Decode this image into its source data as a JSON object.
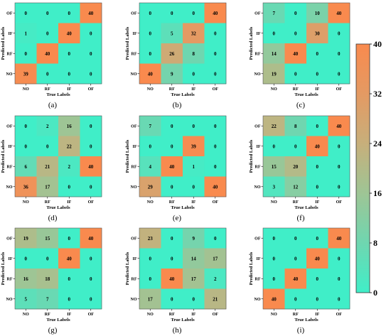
{
  "chart_data": {
    "type": "heatmap",
    "color_scale": {
      "min": 0,
      "max": 40,
      "ticks": [
        "0",
        "8",
        "16",
        "24",
        "32",
        "40"
      ],
      "colors": [
        "#40eec8",
        "#6fd6b0",
        "#9ec595",
        "#c7af7b",
        "#e49a63",
        "#f98a4e"
      ]
    },
    "xlabel": "True Labels",
    "ylabel": "Predicted Labels",
    "x_categories": [
      "NO",
      "RF",
      "IF",
      "OF"
    ],
    "y_categories_top_to_bottom": [
      "OF",
      "IF",
      "RF",
      "NO"
    ],
    "panels": [
      {
        "caption": "(a)",
        "matrix": [
          [
            0,
            0,
            0,
            40
          ],
          [
            1,
            0,
            40,
            0
          ],
          [
            0,
            40,
            0,
            0
          ],
          [
            39,
            0,
            0,
            0
          ]
        ]
      },
      {
        "caption": "(b)",
        "matrix": [
          [
            0,
            0,
            0,
            40
          ],
          [
            0,
            5,
            32,
            0
          ],
          [
            0,
            26,
            8,
            0
          ],
          [
            40,
            9,
            0,
            0
          ]
        ]
      },
      {
        "caption": "(c)",
        "matrix": [
          [
            7,
            0,
            10,
            40
          ],
          [
            0,
            0,
            30,
            0
          ],
          [
            14,
            40,
            0,
            0
          ],
          [
            19,
            0,
            0,
            0
          ]
        ]
      },
      {
        "caption": "(d)",
        "matrix": [
          [
            0,
            2,
            16,
            0
          ],
          [
            0,
            0,
            22,
            0
          ],
          [
            6,
            21,
            2,
            40
          ],
          [
            36,
            17,
            0,
            0
          ]
        ]
      },
      {
        "caption": "(e)",
        "matrix": [
          [
            7,
            0,
            0,
            0
          ],
          [
            0,
            0,
            39,
            0
          ],
          [
            4,
            40,
            1,
            0
          ],
          [
            29,
            0,
            0,
            40
          ]
        ]
      },
      {
        "caption": "(f)",
        "matrix": [
          [
            22,
            8,
            0,
            40
          ],
          [
            0,
            0,
            40,
            0
          ],
          [
            15,
            20,
            0,
            0
          ],
          [
            3,
            12,
            0,
            0
          ]
        ]
      },
      {
        "caption": "(g)",
        "matrix": [
          [
            19,
            15,
            0,
            40
          ],
          [
            0,
            0,
            40,
            0
          ],
          [
            16,
            18,
            0,
            0
          ],
          [
            5,
            7,
            0,
            0
          ]
        ]
      },
      {
        "caption": "(h)",
        "matrix": [
          [
            23,
            0,
            9,
            0
          ],
          [
            0,
            0,
            14,
            17
          ],
          [
            0,
            40,
            17,
            2
          ],
          [
            17,
            0,
            0,
            21
          ]
        ]
      },
      {
        "caption": "(i)",
        "matrix": [
          [
            0,
            0,
            0,
            40
          ],
          [
            0,
            0,
            40,
            0
          ],
          [
            0,
            40,
            0,
            0
          ],
          [
            40,
            0,
            0,
            0
          ]
        ]
      }
    ]
  }
}
